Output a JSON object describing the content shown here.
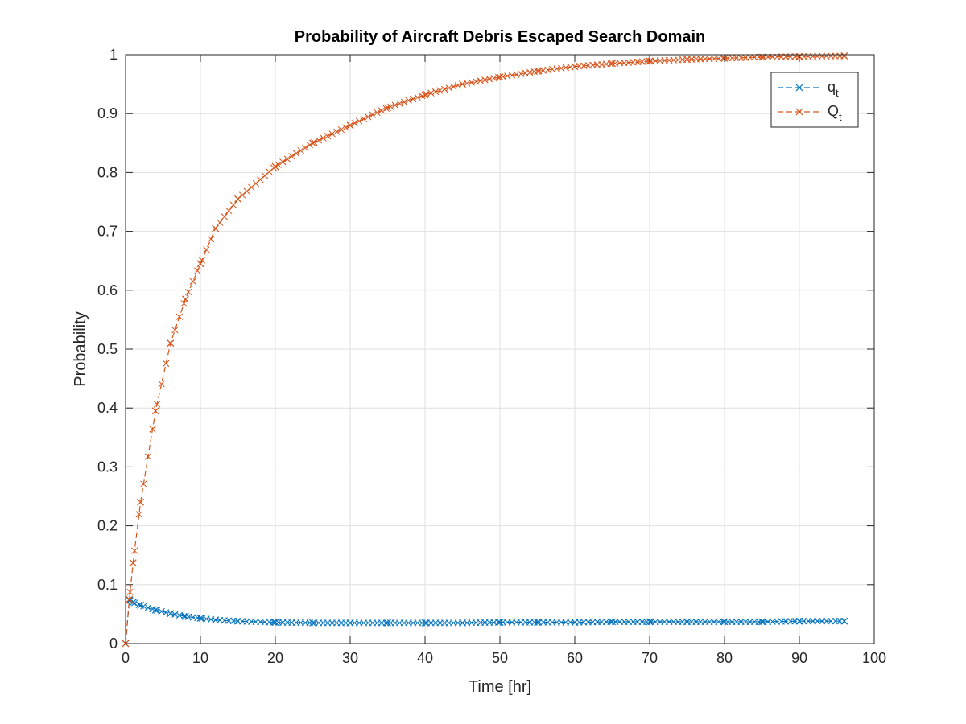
{
  "chart_data": {
    "type": "line",
    "title": "Probability of Aircraft Debris Escaped Search Domain",
    "xlabel": "Time [hr]",
    "ylabel": "Probability",
    "xlim": [
      0,
      100
    ],
    "ylim": [
      0,
      1
    ],
    "xticks": [
      0,
      10,
      20,
      30,
      40,
      50,
      60,
      70,
      80,
      90,
      100
    ],
    "yticks": [
      0,
      0.1,
      0.2,
      0.3,
      0.4,
      0.5,
      0.6,
      0.7,
      0.8,
      0.9,
      1
    ],
    "grid": true,
    "legend_position": "top-right",
    "x": [
      0.5,
      1,
      2,
      4,
      6,
      8,
      10,
      12,
      15,
      20,
      25,
      30,
      35,
      40,
      45,
      50,
      55,
      60,
      65,
      70,
      75,
      80,
      85,
      90,
      96
    ],
    "series": [
      {
        "name": "q",
        "name_sub": "t",
        "color": "#0072BD",
        "marker": "x",
        "line": "dashed",
        "values": [
          0.074,
          0.07,
          0.065,
          0.057,
          0.051,
          0.046,
          0.043,
          0.04,
          0.038,
          0.036,
          0.035,
          0.035,
          0.035,
          0.035,
          0.035,
          0.036,
          0.036,
          0.036,
          0.037,
          0.037,
          0.037,
          0.037,
          0.037,
          0.038,
          0.038
        ]
      },
      {
        "name": "Q",
        "name_sub": "t",
        "color": "#D95319",
        "marker": "x",
        "line": "dashed",
        "values": [
          0.075,
          0.137,
          0.24,
          0.395,
          0.51,
          0.585,
          0.645,
          0.705,
          0.755,
          0.81,
          0.85,
          0.88,
          0.91,
          0.932,
          0.95,
          0.962,
          0.972,
          0.98,
          0.985,
          0.989,
          0.992,
          0.994,
          0.996,
          0.997,
          0.998
        ]
      }
    ]
  }
}
